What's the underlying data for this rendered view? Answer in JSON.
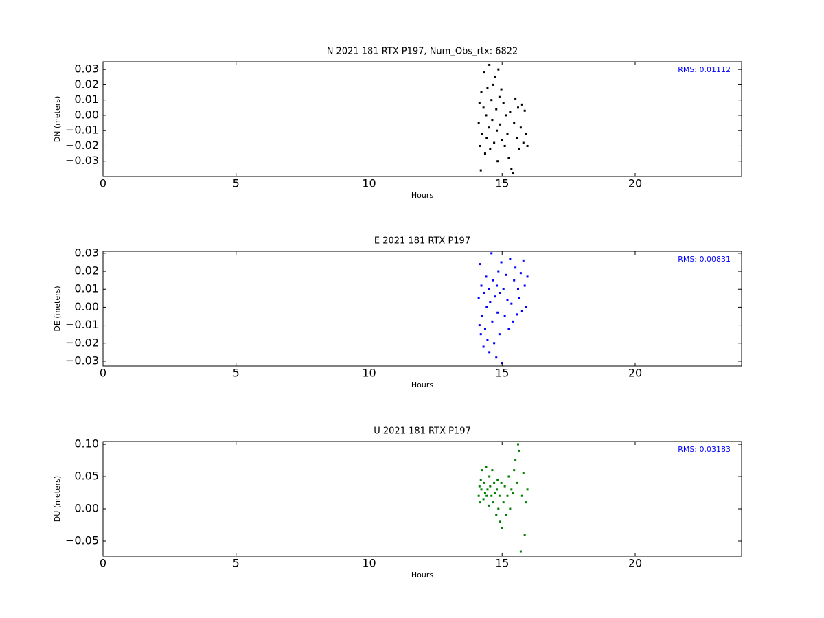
{
  "chart_data": [
    {
      "type": "scatter",
      "title": "N 2021 181 RTX  P197, Num_Obs_rtx: 6822",
      "xlabel": "Hours",
      "ylabel": "DN (meters)",
      "annotation": "RMS:  0.01112",
      "annotation_color": "#0000ff",
      "color": "#000000",
      "xlim": [
        0,
        24
      ],
      "xticks": [
        0,
        5,
        10,
        15,
        20
      ],
      "ylim": [
        -0.04,
        0.035
      ],
      "yticks": [
        {
          "value": -0.03,
          "label": "−0.03"
        },
        {
          "value": -0.02,
          "label": "−0.02"
        },
        {
          "value": -0.01,
          "label": "−0.01"
        },
        {
          "value": 0,
          "label": "0.00"
        },
        {
          "value": 0.01,
          "label": "0.01"
        },
        {
          "value": 0.02,
          "label": "0.02"
        },
        {
          "value": 0.03,
          "label": "0.03"
        }
      ],
      "x": [
        14.12,
        14.15,
        14.18,
        14.2,
        14.22,
        14.25,
        14.3,
        14.33,
        14.36,
        14.4,
        14.42,
        14.45,
        14.5,
        14.52,
        14.55,
        14.6,
        14.63,
        14.66,
        14.7,
        14.74,
        14.78,
        14.8,
        14.83,
        14.86,
        14.9,
        14.93,
        14.97,
        15.0,
        15.05,
        15.1,
        15.15,
        15.2,
        15.25,
        15.3,
        15.35,
        15.4,
        15.45,
        15.5,
        15.55,
        15.6,
        15.65,
        15.7,
        15.75,
        15.8,
        15.85,
        15.9,
        15.95
      ],
      "values": [
        -0.005,
        0.008,
        -0.02,
        -0.036,
        0.015,
        -0.012,
        0.005,
        0.028,
        -0.025,
        0.0,
        -0.015,
        0.018,
        -0.008,
        0.033,
        -0.022,
        0.01,
        -0.003,
        0.02,
        -0.018,
        0.025,
        0.004,
        -0.01,
        -0.03,
        0.03,
        0.012,
        -0.006,
        0.017,
        -0.016,
        0.008,
        -0.02,
        0.0,
        -0.012,
        -0.028,
        0.002,
        -0.035,
        -0.038,
        -0.005,
        0.011,
        -0.015,
        0.005,
        -0.022,
        -0.008,
        0.007,
        -0.018,
        0.003,
        -0.012,
        -0.02
      ]
    },
    {
      "type": "scatter",
      "title": "E 2021 181 RTX  P197",
      "xlabel": "Hours",
      "ylabel": "DE (meters)",
      "annotation": "RMS:  0.00831",
      "annotation_color": "#0000ff",
      "color": "#0000ff",
      "xlim": [
        0,
        24
      ],
      "xticks": [
        0,
        5,
        10,
        15,
        20
      ],
      "ylim": [
        -0.0327,
        0.0311
      ],
      "yticks": [
        {
          "value": -0.03,
          "label": "−0.03"
        },
        {
          "value": -0.02,
          "label": "−0.02"
        },
        {
          "value": -0.01,
          "label": "−0.01"
        },
        {
          "value": 0,
          "label": "0.00"
        },
        {
          "value": 0.01,
          "label": "0.01"
        },
        {
          "value": 0.02,
          "label": "0.02"
        },
        {
          "value": 0.03,
          "label": "0.03"
        }
      ],
      "x": [
        14.12,
        14.15,
        14.18,
        14.2,
        14.22,
        14.25,
        14.3,
        14.33,
        14.36,
        14.4,
        14.42,
        14.45,
        14.5,
        14.52,
        14.55,
        14.6,
        14.63,
        14.66,
        14.7,
        14.74,
        14.78,
        14.8,
        14.83,
        14.86,
        14.9,
        14.93,
        14.97,
        15.0,
        15.05,
        15.1,
        15.15,
        15.2,
        15.25,
        15.3,
        15.35,
        15.4,
        15.45,
        15.5,
        15.55,
        15.6,
        15.65,
        15.7,
        15.75,
        15.8,
        15.85,
        15.9,
        15.95
      ],
      "values": [
        0.005,
        -0.01,
        0.024,
        -0.015,
        0.012,
        -0.005,
        -0.022,
        0.008,
        -0.012,
        0.017,
        0.0,
        -0.018,
        0.01,
        -0.025,
        0.003,
        0.03,
        -0.008,
        0.015,
        -0.02,
        0.006,
        -0.028,
        0.012,
        -0.003,
        0.02,
        -0.015,
        0.008,
        0.025,
        -0.031,
        0.01,
        -0.005,
        0.018,
        0.004,
        -0.012,
        0.027,
        0.002,
        -0.008,
        0.015,
        0.022,
        -0.004,
        0.01,
        0.005,
        0.019,
        -0.002,
        0.026,
        0.012,
        0.0,
        0.017
      ]
    },
    {
      "type": "scatter",
      "title": "U 2021 181 RTX  P197",
      "xlabel": "Hours",
      "ylabel": "DU (meters)",
      "annotation": "RMS:  0.03183",
      "annotation_color": "#0000ff",
      "color": "#008000",
      "xlim": [
        0,
        24
      ],
      "xticks": [
        0,
        5,
        10,
        15,
        20
      ],
      "ylim": [
        -0.0734,
        0.1043
      ],
      "yticks": [
        {
          "value": -0.05,
          "label": "−0.05"
        },
        {
          "value": 0,
          "label": "0.00"
        },
        {
          "value": 0.05,
          "label": "0.05"
        },
        {
          "value": 0.1,
          "label": "0.10"
        }
      ],
      "x": [
        14.12,
        14.15,
        14.18,
        14.2,
        14.22,
        14.25,
        14.3,
        14.33,
        14.36,
        14.4,
        14.42,
        14.45,
        14.5,
        14.52,
        14.55,
        14.6,
        14.63,
        14.66,
        14.7,
        14.74,
        14.78,
        14.8,
        14.83,
        14.86,
        14.9,
        14.93,
        14.97,
        15.0,
        15.05,
        15.1,
        15.15,
        15.2,
        15.25,
        15.3,
        15.35,
        15.4,
        15.45,
        15.5,
        15.55,
        15.6,
        15.65,
        15.7,
        15.75,
        15.8,
        15.85,
        15.9,
        15.95
      ],
      "values": [
        0.02,
        0.035,
        0.01,
        0.045,
        0.03,
        0.06,
        0.015,
        0.04,
        0.025,
        0.065,
        0.02,
        0.03,
        0.005,
        0.05,
        0.035,
        0.02,
        0.06,
        0.01,
        0.04,
        0.025,
        -0.01,
        0.03,
        0.045,
        0.0,
        0.02,
        -0.02,
        0.04,
        -0.03,
        0.01,
        0.035,
        -0.01,
        0.02,
        0.05,
        0.0,
        0.03,
        0.025,
        0.06,
        0.075,
        0.04,
        0.1,
        0.09,
        -0.066,
        0.02,
        0.055,
        -0.04,
        0.01,
        0.03
      ]
    }
  ]
}
